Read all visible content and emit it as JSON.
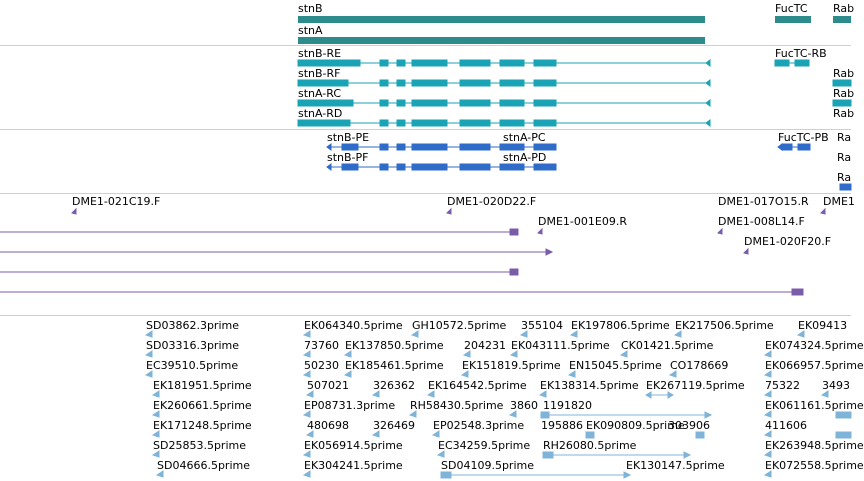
{
  "colors": {
    "gene": "#2e8b8b",
    "transcript": "#1aa3b5",
    "protein": "#2f6bc9",
    "clone": "#7a5ca8",
    "est": "#7fb4d8",
    "divider": "#c8d0d8"
  },
  "genes": [
    {
      "label": "stnB"
    },
    {
      "label": "stnA"
    },
    {
      "label": "FucTC"
    },
    {
      "label": "Rab"
    }
  ],
  "transcripts": [
    {
      "label": "stnB-RE"
    },
    {
      "label": "stnB-RF"
    },
    {
      "label": "stnA-RC"
    },
    {
      "label": "stnA-RD"
    },
    {
      "label": "FucTC-RB"
    },
    {
      "label": "Rab"
    },
    {
      "label": "Rab"
    },
    {
      "label": "Rab"
    }
  ],
  "proteins": [
    {
      "label": "stnB-PE"
    },
    {
      "label": "stnB-PF"
    },
    {
      "label": "stnA-PC"
    },
    {
      "label": "stnA-PD"
    },
    {
      "label": "FucTC-PB"
    },
    {
      "label": "Ra"
    },
    {
      "label": "Ra"
    },
    {
      "label": "Ra"
    }
  ],
  "clones": [
    {
      "label": "DME1-021C19.F"
    },
    {
      "label": "DME1-020D22.F"
    },
    {
      "label": "DME1-001E09.R"
    },
    {
      "label": "DME1-017O15.R"
    },
    {
      "label": "DME1"
    },
    {
      "label": "DME1-008L14.F"
    },
    {
      "label": "DME1-020F20.F"
    }
  ],
  "ests": [
    {
      "label": "SD03862.3prime"
    },
    {
      "label": "SD03316.3prime"
    },
    {
      "label": "EC39510.5prime"
    },
    {
      "label": "EK181951.5prime"
    },
    {
      "label": "EK260661.5prime"
    },
    {
      "label": "EK171248.5prime"
    },
    {
      "label": "SD25853.5prime"
    },
    {
      "label": "SD04666.5prime"
    },
    {
      "label": "EK064340.5prime"
    },
    {
      "label": "73760"
    },
    {
      "label": "50230"
    },
    {
      "label": "507021"
    },
    {
      "label": "EP08731.3prime"
    },
    {
      "label": "480698"
    },
    {
      "label": "EK056914.5prime"
    },
    {
      "label": "EK304241.5prime"
    },
    {
      "label": "GH10572.5prime"
    },
    {
      "label": "EK137850.5prime"
    },
    {
      "label": "EK185461.5prime"
    },
    {
      "label": "326362"
    },
    {
      "label": "326469"
    },
    {
      "label": "RH58430.5prime"
    },
    {
      "label": "EK164542.5prime"
    },
    {
      "label": "EP02548.3prime"
    },
    {
      "label": "EC34259.5prime"
    },
    {
      "label": "SD04109.5prime"
    },
    {
      "label": "355104"
    },
    {
      "label": "204231"
    },
    {
      "label": "EK043111.5prime"
    },
    {
      "label": "EK151819.5prime"
    },
    {
      "label": "EK138314.5prime"
    },
    {
      "label": "3860"
    },
    {
      "label": "1191820"
    },
    {
      "label": "195886"
    },
    {
      "label": "RH26080.5prime"
    },
    {
      "label": "EK197806.5prime"
    },
    {
      "label": "CK01421.5prime"
    },
    {
      "label": "EN15045.5prime"
    },
    {
      "label": "EK267119.5prime"
    },
    {
      "label": "EK090809.5prime"
    },
    {
      "label": "303906"
    },
    {
      "label": "EK130147.5prime"
    },
    {
      "label": "EK217506.5prime"
    },
    {
      "label": "CO178669"
    },
    {
      "label": "EK09413"
    },
    {
      "label": "EK074324.5prime"
    },
    {
      "label": "EK066957.5prime"
    },
    {
      "label": "75322"
    },
    {
      "label": "3493"
    },
    {
      "label": "EK061161.5prime"
    },
    {
      "label": "411606"
    },
    {
      "label": "EK263948.5prime"
    },
    {
      "label": "EK072558.5prime"
    }
  ]
}
